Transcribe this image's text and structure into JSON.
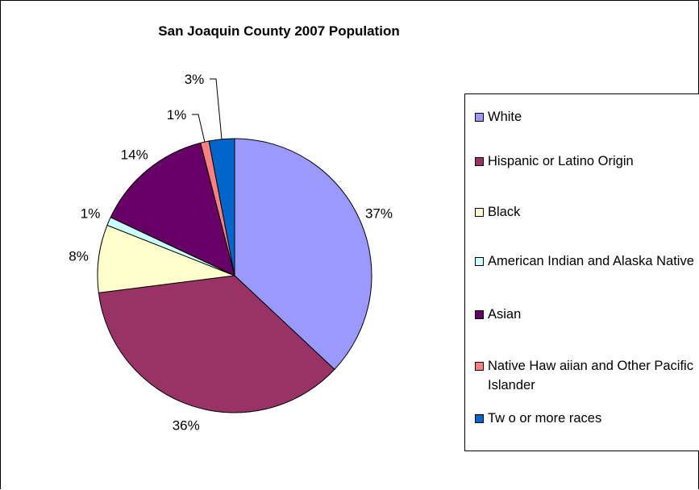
{
  "chart_data": {
    "type": "pie",
    "title": "San Joaquin County 2007 Population",
    "slices": [
      {
        "label": "White",
        "value": 37,
        "display": "37%",
        "color": "#9999ff"
      },
      {
        "label": "Hispanic or Latino Origin",
        "value": 36,
        "display": "36%",
        "color": "#993366"
      },
      {
        "label": "Black",
        "value": 8,
        "display": "8%",
        "color": "#ffffcc"
      },
      {
        "label": "American Indian and Alaska Native",
        "value": 1,
        "display": "1%",
        "color": "#ccffff"
      },
      {
        "label": "Asian",
        "value": 14,
        "display": "14%",
        "color": "#660066"
      },
      {
        "label": "Native Haw aiian and Other Pacific Islander",
        "value": 1,
        "display": "1%",
        "color": "#ff8080"
      },
      {
        "label": "Tw o or more races",
        "value": 3,
        "display": "3%",
        "color": "#0066cc"
      }
    ],
    "legend_position": "right"
  }
}
